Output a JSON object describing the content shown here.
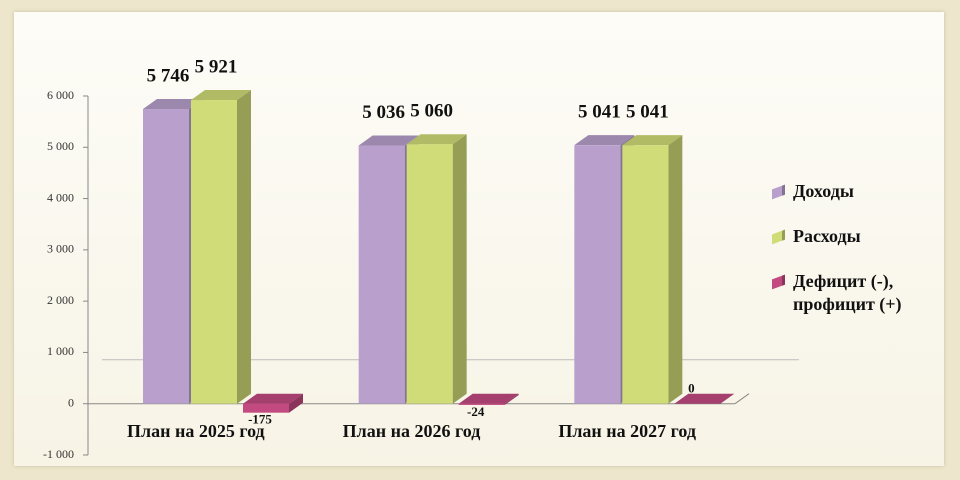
{
  "chart_data": {
    "type": "bar3d",
    "categories": [
      "План на 2025 год",
      "План на 2026 год",
      "План на 2027 год"
    ],
    "series": [
      {
        "name": "Доходы",
        "color": "#b9a0cc",
        "values": [
          5746,
          5036,
          5041
        ],
        "value_labels": [
          "5 746",
          "5 036",
          "5 041"
        ]
      },
      {
        "name": "Расходы",
        "color": "#d0dc78",
        "values": [
          5921,
          5060,
          5041
        ],
        "value_labels": [
          "5 921",
          "5 060",
          "5 041"
        ]
      },
      {
        "name": "Дефицит (-), профицит (+)",
        "color": "#c24a80",
        "values": [
          -175,
          -24,
          0
        ],
        "value_labels": [
          "-175",
          "-24",
          "0"
        ]
      }
    ],
    "ylim": [
      -1000,
      6000
    ],
    "yticks": [
      {
        "value": -1000,
        "label": "-1 000"
      },
      0,
      {
        "value": 1000,
        "label": "1 000"
      },
      {
        "value": 2000,
        "label": "2 000"
      },
      {
        "value": 3000,
        "label": "3 000"
      },
      {
        "value": 4000,
        "label": "4 000"
      },
      {
        "value": 5000,
        "label": "5 000"
      },
      {
        "value": 6000,
        "label": "6 000"
      }
    ],
    "legend": "right"
  }
}
